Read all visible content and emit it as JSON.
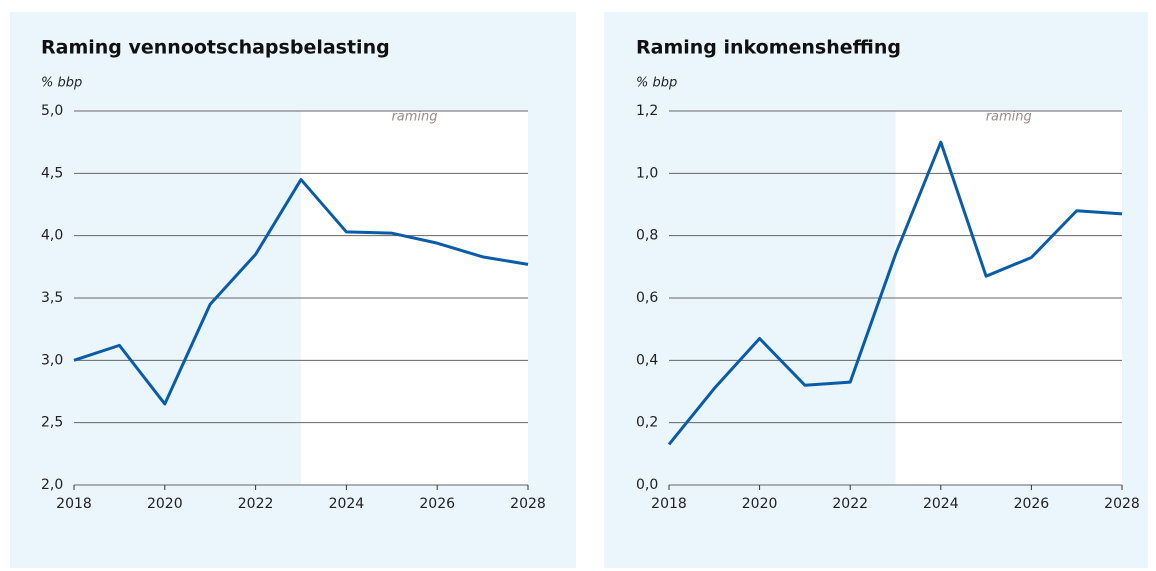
{
  "chart_data": [
    {
      "type": "line",
      "title": "Raming vennootschapsbelasting",
      "y_label": "% bbp",
      "annotation": "raming",
      "x": [
        2018,
        2019,
        2020,
        2021,
        2022,
        2023,
        2024,
        2025,
        2026,
        2027,
        2028
      ],
      "values": [
        3.0,
        3.12,
        2.65,
        3.45,
        3.85,
        4.45,
        4.03,
        4.02,
        3.94,
        3.83,
        3.77
      ],
      "color": "#0a5ca8",
      "forecast_start": 2023,
      "xlim": [
        2018,
        2028
      ],
      "xticks": [
        2018,
        2020,
        2022,
        2024,
        2026,
        2028
      ],
      "ylim": [
        2,
        5
      ],
      "yticks": [
        {
          "value": 2,
          "label": "2,0"
        },
        {
          "value": 2.5,
          "label": "2,5"
        },
        {
          "value": 3,
          "label": "3,0"
        },
        {
          "value": 3.5,
          "label": "3,5"
        },
        {
          "value": 4,
          "label": "4,0"
        },
        {
          "value": 4.5,
          "label": "4,5"
        },
        {
          "value": 5,
          "label": "5,0"
        }
      ],
      "grid": true
    },
    {
      "type": "line",
      "title": "Raming inkomensheffing",
      "y_label": "% bbp",
      "annotation": "raming",
      "x": [
        2018,
        2019,
        2020,
        2021,
        2022,
        2023,
        2024,
        2025,
        2026,
        2027,
        2028
      ],
      "values": [
        0.13,
        0.31,
        0.47,
        0.32,
        0.33,
        0.74,
        1.1,
        0.67,
        0.73,
        0.88,
        0.87
      ],
      "color": "#0a5ca8",
      "forecast_start": 2023,
      "xlim": [
        2018,
        2028
      ],
      "xticks": [
        2018,
        2020,
        2022,
        2024,
        2026,
        2028
      ],
      "ylim": [
        0,
        1.2
      ],
      "yticks": [
        {
          "value": 0,
          "label": "0,0"
        },
        {
          "value": 0.2,
          "label": "0,2"
        },
        {
          "value": 0.4,
          "label": "0,4"
        },
        {
          "value": 0.6,
          "label": "0,6"
        },
        {
          "value": 0.8,
          "label": "0,8"
        },
        {
          "value": 1,
          "label": "1,0"
        },
        {
          "value": 1.2,
          "label": "1,2"
        }
      ],
      "grid": true
    }
  ]
}
